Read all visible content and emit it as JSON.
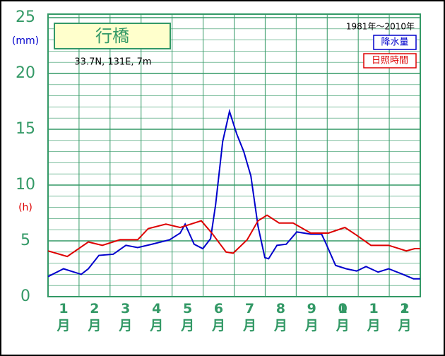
{
  "chart_data": {
    "type": "line",
    "title": "行橋",
    "subtitle": "33.7N,  131E,  7m",
    "annotation": "1981年〜2010年",
    "y_unit": "(mm)",
    "y_unit2": "(h)",
    "categories": [
      "1月",
      "2月",
      "3月",
      "4月",
      "5月",
      "6月",
      "7月",
      "8月",
      "9月",
      "10月",
      "11月",
      "12月"
    ],
    "xlim": [
      0,
      12
    ],
    "ylim": [
      0,
      25
    ],
    "yticks": [
      0,
      5,
      10,
      15,
      20,
      25
    ],
    "grid": true,
    "legend": "top-right",
    "series": [
      {
        "name": "降水量",
        "color": "#0000cc",
        "x": [
          0,
          0.5,
          1.07,
          1.3,
          1.64,
          2.1,
          2.51,
          2.89,
          3.35,
          3.92,
          4.26,
          4.42,
          4.71,
          4.99,
          5.24,
          5.4,
          5.63,
          5.85,
          6.08,
          6.31,
          6.54,
          6.77,
          6.99,
          7.11,
          7.38,
          7.68,
          8.02,
          8.47,
          8.82,
          8.97,
          9.27,
          9.61,
          9.95,
          10.25,
          10.64,
          10.98,
          11.44,
          11.78,
          12
        ],
        "values": [
          1.8,
          2.5,
          2.0,
          2.5,
          3.7,
          3.8,
          4.6,
          4.4,
          4.7,
          5.1,
          5.7,
          6.5,
          4.7,
          4.3,
          5.2,
          8.2,
          13.9,
          16.6,
          14.6,
          13.0,
          10.8,
          6.3,
          3.5,
          3.4,
          4.6,
          4.7,
          5.8,
          5.6,
          5.6,
          4.7,
          2.8,
          2.5,
          2.3,
          2.7,
          2.2,
          2.5,
          2.0,
          1.6,
          1.6
        ]
      },
      {
        "name": "日照時間",
        "color": "#dd0000",
        "x": [
          0,
          0.62,
          1.3,
          1.75,
          2.32,
          2.89,
          3.23,
          3.8,
          4.26,
          4.94,
          5.28,
          5.74,
          5.97,
          6.42,
          6.77,
          7.06,
          7.45,
          7.9,
          8.47,
          9.04,
          9.57,
          9.95,
          10.41,
          10.98,
          11.55,
          11.82,
          12
        ],
        "values": [
          4.1,
          3.6,
          4.9,
          4.6,
          5.1,
          5.1,
          6.1,
          6.5,
          6.2,
          6.8,
          5.7,
          4.0,
          3.9,
          5.1,
          6.8,
          7.3,
          6.6,
          6.6,
          5.7,
          5.7,
          6.2,
          5.5,
          4.6,
          4.6,
          4.1,
          4.3,
          4.3
        ]
      }
    ]
  }
}
